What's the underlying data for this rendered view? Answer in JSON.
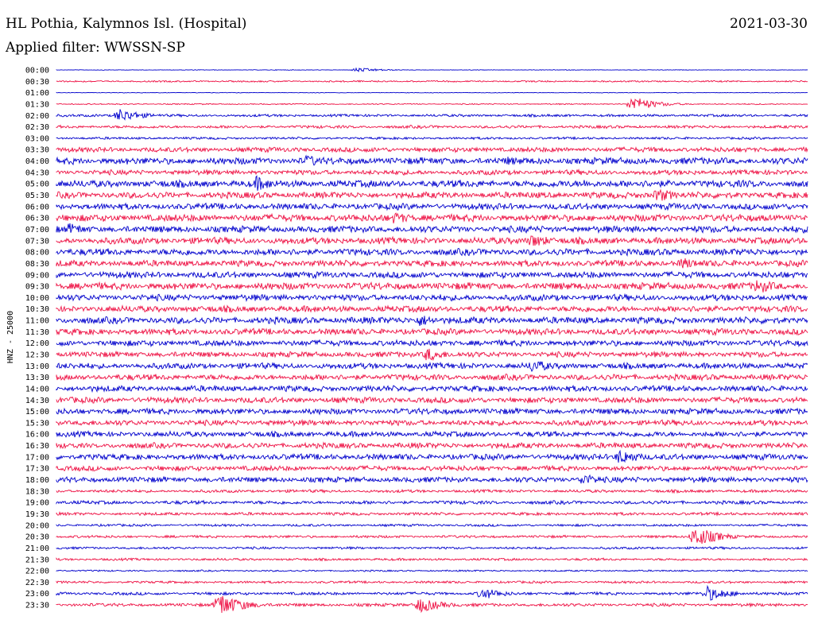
{
  "header": {
    "title": "HL Pothia, Kalymnos Isl. (Hospital)",
    "date": "2021-03-30",
    "filter": "Applied filter: WWSSN-SP"
  },
  "chart_data": {
    "type": "line",
    "ylabel": "HNZ - 25000",
    "trace_colors": [
      "#0000cc",
      "#ee1144"
    ],
    "rows": [
      "00:00",
      "00:30",
      "01:00",
      "01:30",
      "02:00",
      "02:30",
      "03:00",
      "03:30",
      "04:00",
      "04:30",
      "05:00",
      "05:30",
      "06:00",
      "06:30",
      "07:00",
      "07:30",
      "08:00",
      "08:30",
      "09:00",
      "09:30",
      "10:00",
      "10:30",
      "11:00",
      "11:30",
      "12:00",
      "12:30",
      "13:00",
      "13:30",
      "14:00",
      "14:30",
      "15:00",
      "15:30",
      "16:00",
      "16:30",
      "17:00",
      "17:30",
      "18:00",
      "18:30",
      "19:00",
      "19:30",
      "20:00",
      "20:30",
      "21:00",
      "21:30",
      "22:00",
      "22:30",
      "23:00",
      "23:30"
    ],
    "noise_level": [
      0.3,
      0.8,
      0.3,
      0.6,
      1.3,
      1.5,
      1.2,
      2.5,
      3.5,
      2.5,
      3.6,
      3.2,
      3.2,
      3.6,
      3.4,
      3.4,
      3.4,
      3.2,
      3.2,
      3.6,
      3.2,
      3.2,
      3.4,
      3.2,
      3.0,
      2.8,
      3.0,
      3.0,
      3.0,
      3.0,
      3.0,
      2.8,
      2.8,
      2.8,
      3.0,
      2.6,
      2.8,
      1.5,
      1.8,
      1.5,
      1.2,
      1.3,
      1.2,
      1.2,
      0.8,
      1.2,
      1.5,
      1.6
    ],
    "events": [
      {
        "row": "00:00",
        "minute": 12,
        "amp": 3
      },
      {
        "row": "01:30",
        "minute": 23,
        "amp": 10
      },
      {
        "row": "02:00",
        "minute": 2.5,
        "amp": 9
      },
      {
        "row": "04:00",
        "minute": 10,
        "amp": 8
      },
      {
        "row": "04:00",
        "minute": 18,
        "amp": 6
      },
      {
        "row": "05:00",
        "minute": 8,
        "amp": 10
      },
      {
        "row": "05:00",
        "minute": 21,
        "amp": 6
      },
      {
        "row": "05:30",
        "minute": 24,
        "amp": 9
      },
      {
        "row": "06:30",
        "minute": 13.5,
        "amp": 8
      },
      {
        "row": "07:00",
        "minute": 0.5,
        "amp": 8
      },
      {
        "row": "07:30",
        "minute": 19,
        "amp": 9
      },
      {
        "row": "08:30",
        "minute": 25,
        "amp": 8
      },
      {
        "row": "09:30",
        "minute": 28,
        "amp": 10
      },
      {
        "row": "11:00",
        "minute": 14.5,
        "amp": 8
      },
      {
        "row": "12:30",
        "minute": 14.8,
        "amp": 9
      },
      {
        "row": "13:00",
        "minute": 19,
        "amp": 9
      },
      {
        "row": "17:00",
        "minute": 22.5,
        "amp": 10
      },
      {
        "row": "18:00",
        "minute": 21,
        "amp": 8
      },
      {
        "row": "20:30",
        "minute": 25.5,
        "amp": 14
      },
      {
        "row": "23:00",
        "minute": 17,
        "amp": 8
      },
      {
        "row": "23:00",
        "minute": 26,
        "amp": 10
      },
      {
        "row": "23:30",
        "minute": 6.5,
        "amp": 16
      },
      {
        "row": "23:30",
        "minute": 14.5,
        "amp": 10
      }
    ]
  }
}
